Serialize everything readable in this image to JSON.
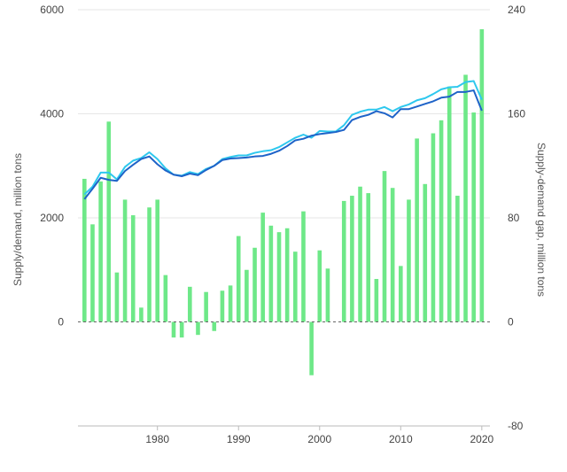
{
  "chart_data": {
    "type": "bar",
    "title": "",
    "ylabel_left": "Supply/demand, million tons",
    "ylabel_right": "Supply-demand gap, million tons",
    "x": [
      1971,
      1972,
      1973,
      1974,
      1975,
      1976,
      1977,
      1978,
      1979,
      1980,
      1981,
      1982,
      1983,
      1984,
      1985,
      1986,
      1987,
      1988,
      1989,
      1990,
      1991,
      1992,
      1993,
      1994,
      1995,
      1996,
      1997,
      1998,
      1999,
      2000,
      2001,
      2002,
      2003,
      2004,
      2005,
      2006,
      2007,
      2008,
      2009,
      2010,
      2011,
      2012,
      2013,
      2014,
      2015,
      2016,
      2017,
      2018,
      2019,
      2020
    ],
    "xlim": [
      1970.2,
      2021
    ],
    "x_ticks": [
      1980,
      1990,
      2000,
      2010,
      2020
    ],
    "ylim_left": [
      -2000,
      6000
    ],
    "y_ticks_left": [
      0,
      2000,
      4000,
      6000
    ],
    "ylim_right": [
      -80,
      240
    ],
    "y_ticks_right": [
      -80,
      0,
      80,
      160,
      240
    ],
    "grid": true,
    "series": [
      {
        "type": "bar",
        "axis": "right",
        "color": "#6ee888",
        "values": [
          110,
          75,
          108,
          154,
          38,
          94,
          82,
          11,
          88,
          94,
          36,
          -12,
          -12,
          27,
          -10,
          23,
          -7,
          24,
          28,
          66,
          40,
          57,
          84,
          74,
          69,
          72,
          54,
          85,
          -41,
          55,
          41,
          0,
          93,
          97,
          104,
          99,
          33,
          116,
          103,
          43,
          94,
          141,
          106,
          145,
          155,
          181,
          97,
          190,
          161,
          225
        ]
      },
      {
        "type": "line",
        "axis": "left",
        "color": "#2ec8ee",
        "values": [
          2450,
          2600,
          2870,
          2870,
          2740,
          2980,
          3100,
          3150,
          3260,
          3130,
          2950,
          2830,
          2810,
          2880,
          2840,
          2940,
          3000,
          3130,
          3170,
          3200,
          3200,
          3250,
          3280,
          3300,
          3360,
          3450,
          3540,
          3600,
          3540,
          3670,
          3660,
          3660,
          3780,
          3980,
          4040,
          4080,
          4080,
          4130,
          4050,
          4130,
          4180,
          4260,
          4300,
          4380,
          4470,
          4510,
          4520,
          4610,
          4630,
          4270
        ]
      },
      {
        "type": "line",
        "axis": "left",
        "color": "#1e63c8",
        "values": [
          2360,
          2560,
          2770,
          2730,
          2710,
          2900,
          3020,
          3130,
          3180,
          3030,
          2910,
          2830,
          2800,
          2850,
          2820,
          2920,
          3000,
          3110,
          3140,
          3150,
          3160,
          3180,
          3190,
          3230,
          3290,
          3380,
          3490,
          3520,
          3580,
          3610,
          3630,
          3650,
          3690,
          3880,
          3940,
          3980,
          4050,
          4010,
          3930,
          4090,
          4090,
          4140,
          4190,
          4240,
          4310,
          4330,
          4420,
          4420,
          4450,
          4060
        ]
      }
    ]
  }
}
